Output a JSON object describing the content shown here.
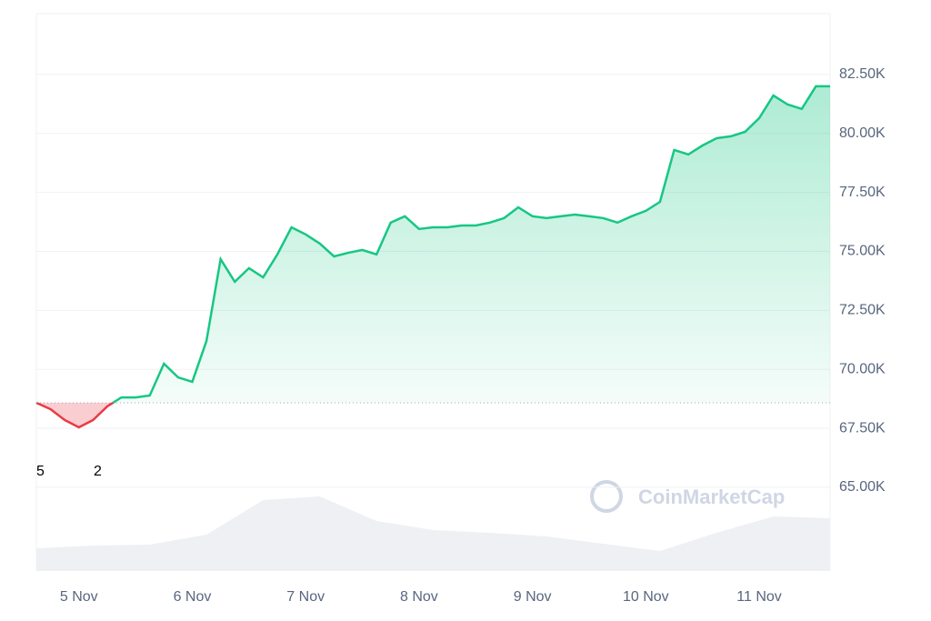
{
  "chart_data": {
    "type": "line",
    "categories": [
      null,
      null,
      null,
      "5 Nov",
      null,
      null,
      null,
      null,
      null,
      null,
      null,
      "6 Nov",
      null,
      null,
      null,
      null,
      null,
      null,
      null,
      "7 Nov",
      null,
      null,
      null,
      null,
      null,
      null,
      null,
      "8 Nov",
      null,
      null,
      null,
      null,
      null,
      null,
      null,
      "9 Nov",
      null,
      null,
      null,
      null,
      null,
      null,
      null,
      "10 Nov",
      null,
      null,
      null,
      null,
      null,
      null,
      null,
      "11 Nov",
      null,
      null,
      null,
      null,
      null
    ],
    "values": [
      68580,
      68310,
      67850,
      67540,
      67850,
      68430,
      68810,
      68810,
      68890,
      70240,
      69660,
      69470,
      71200,
      74670,
      73710,
      74290,
      73900,
      74870,
      76020,
      75720,
      75330,
      74790,
      74940,
      75060,
      74870,
      76220,
      76490,
      75950,
      76020,
      76020,
      76100,
      76100,
      76220,
      76410,
      76870,
      76490,
      76410,
      76490,
      76560,
      76490,
      76410,
      76220,
      76490,
      76720,
      77100,
      79300,
      79110,
      79490,
      79800,
      79880,
      80070,
      80650,
      81610,
      81230,
      81040,
      82000,
      82000
    ],
    "up_color": "#16c784",
    "down_color": "#ea3943",
    "baseline": 68580,
    "volume": {
      "color": "#eef0f3",
      "values": [
        25,
        28,
        29,
        40,
        78,
        82,
        55,
        45,
        42,
        38,
        30,
        22,
        42,
        60,
        58
      ]
    },
    "ylim": [
      61450,
      85080
    ],
    "yticks": [
      {
        "value": 65000,
        "label": "65.00K"
      },
      {
        "value": 67500,
        "label": "67.50K"
      },
      {
        "value": 70000,
        "label": "70.00K"
      },
      {
        "value": 72500,
        "label": "72.50K"
      },
      {
        "value": 75000,
        "label": "75.00K"
      },
      {
        "value": 77500,
        "label": "77.50K"
      },
      {
        "value": 80000,
        "label": "80.00K"
      },
      {
        "value": 82500,
        "label": "82.50K"
      }
    ],
    "grid": true,
    "annotations": [
      "5",
      "2"
    ],
    "watermark": "CoinMarketCap"
  }
}
